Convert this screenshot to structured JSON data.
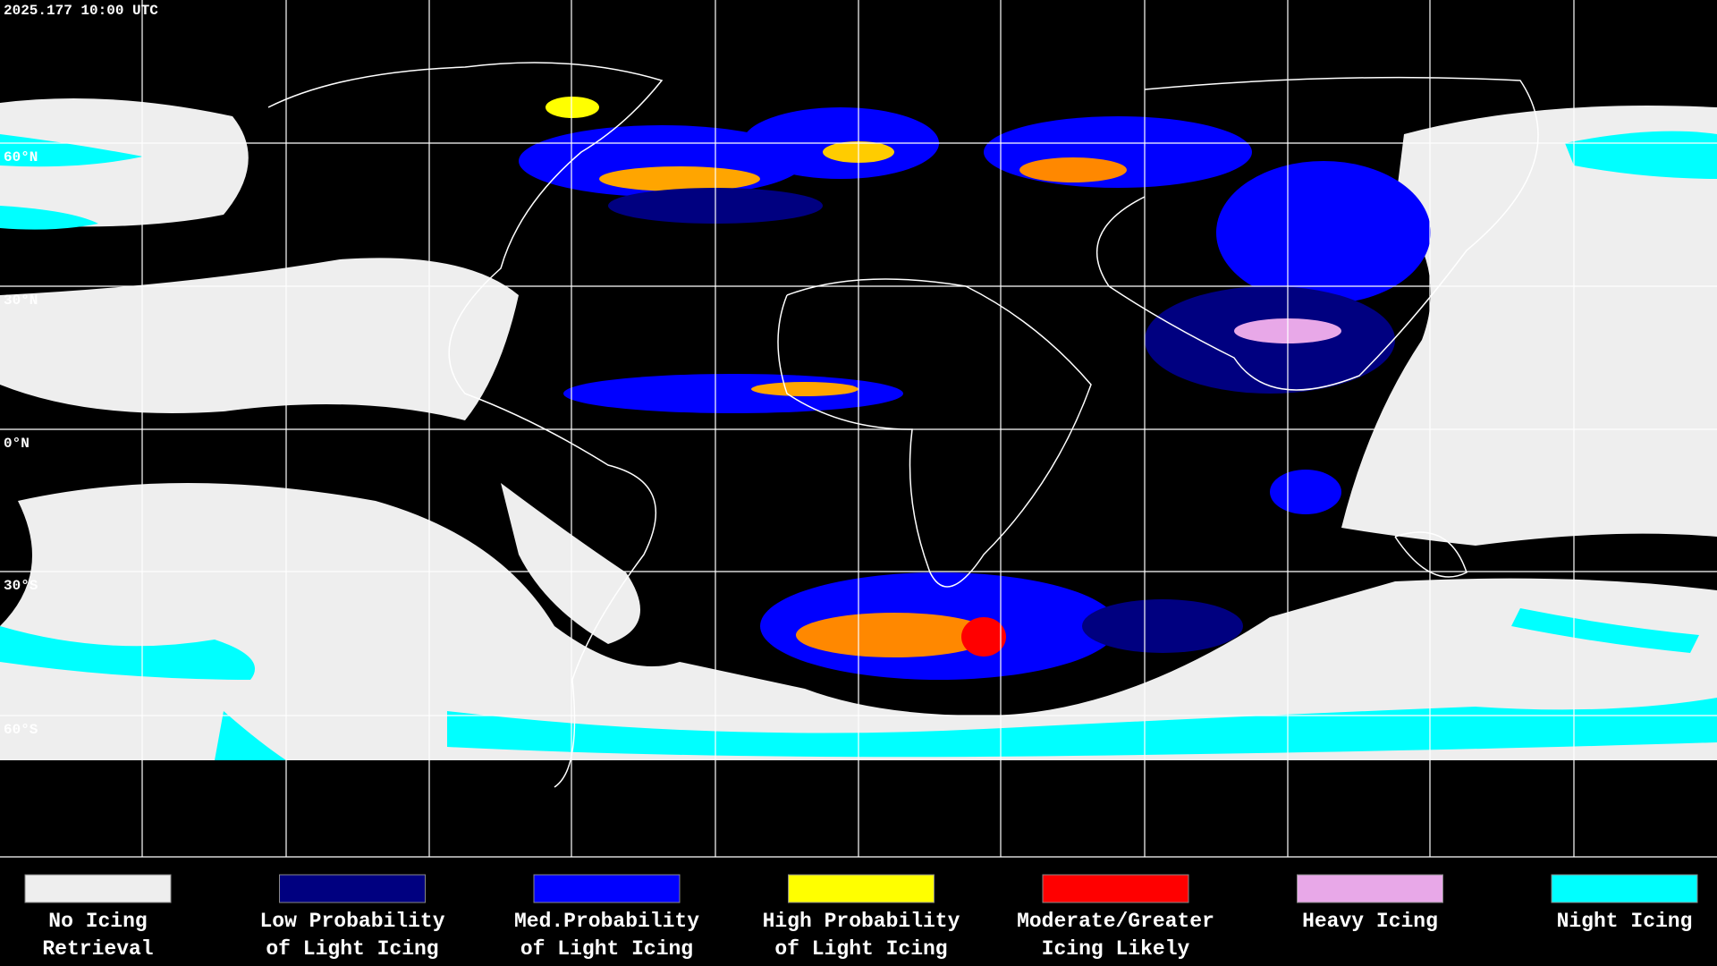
{
  "timestamp": "2025.177 10:00 UTC",
  "latitude_labels": [
    "60°N",
    "30°N",
    "0°N",
    "30°S",
    "60°S"
  ],
  "legend": [
    {
      "color": "#eeeeee",
      "label": [
        "No Icing",
        "Retrieval"
      ]
    },
    {
      "color": "#000080",
      "label": [
        "Low Probability",
        "of Light Icing"
      ]
    },
    {
      "color": "#0000ff",
      "label": [
        "Med.Probability",
        "of Light Icing"
      ]
    },
    {
      "color": "#ffff00",
      "label": [
        "High Probability",
        "of Light Icing"
      ]
    },
    {
      "color": "#ff0000",
      "label": [
        "Moderate/Greater",
        "Icing Likely"
      ]
    },
    {
      "color": "#e8a8e8",
      "label": [
        "Heavy Icing",
        ""
      ]
    },
    {
      "color": "#00ffff",
      "label": [
        "Night Icing",
        ""
      ]
    }
  ]
}
